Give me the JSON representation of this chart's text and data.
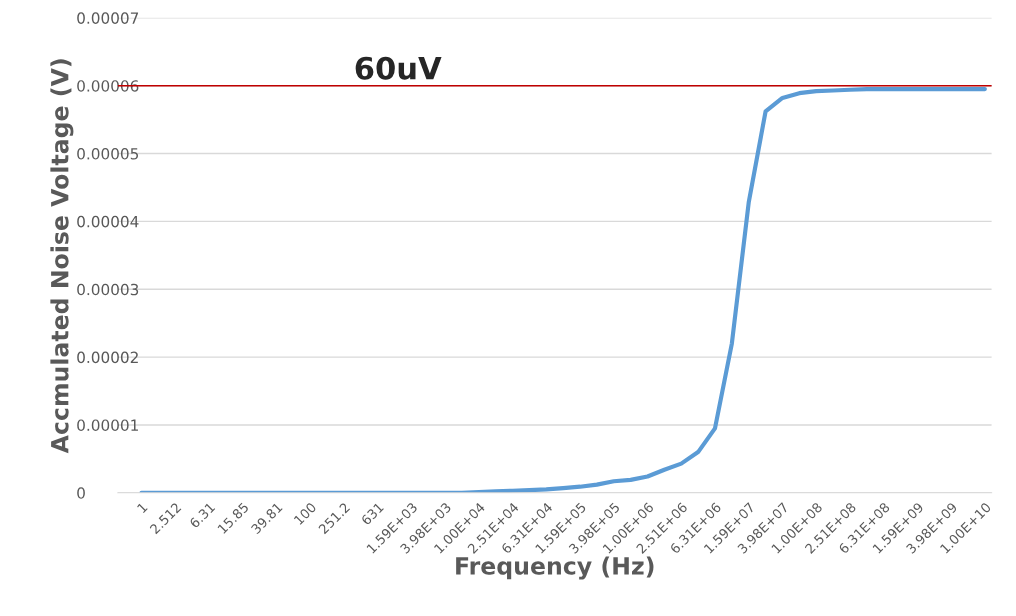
{
  "chart_data": {
    "type": "line",
    "xlabel": "Frequency (Hz)",
    "ylabel": "Accmulated Noise Voltage (V)",
    "categories": [
      "1",
      null,
      "2.512",
      null,
      "6.31",
      null,
      "15.85",
      null,
      "39.81",
      null,
      "100",
      null,
      "251.2",
      null,
      "631",
      null,
      "1.59E+03",
      null,
      "3.98E+03",
      null,
      "1.00E+04",
      null,
      "2.51E+04",
      null,
      "6.31E+04",
      null,
      "1.59E+05",
      null,
      "3.98E+05",
      null,
      "1.00E+06",
      null,
      "2.51E+06",
      null,
      "6.31E+06",
      null,
      "1.59E+07",
      null,
      "3.98E+07",
      null,
      "1.00E+08",
      null,
      "2.51E+08",
      null,
      "6.31E+08",
      null,
      "1.59E+09",
      null,
      "3.98E+09",
      null,
      "1.00E+10"
    ],
    "series": [
      {
        "color": "#5b9bd5",
        "values": [
          0,
          0,
          0,
          0,
          0,
          0,
          0,
          0,
          0,
          0,
          0,
          0,
          0,
          0,
          0,
          0,
          0,
          0,
          0,
          0,
          1e-07,
          2e-07,
          3e-07,
          4e-07,
          5e-07,
          7e-07,
          9e-07,
          1.2e-06,
          1.7e-06,
          1.9e-06,
          2.4e-06,
          3.4e-06,
          4.3e-06,
          6e-06,
          9.5e-06,
          2.2e-05,
          4.28e-05,
          5.62e-05,
          5.82e-05,
          5.89e-05,
          5.92e-05,
          5.93e-05,
          5.94e-05,
          5.95e-05,
          5.95e-05,
          5.95e-05,
          5.95e-05,
          5.95e-05,
          5.95e-05,
          5.95e-05,
          5.95e-05
        ]
      }
    ],
    "ylim": [
      0,
      7e-05
    ],
    "yticks": [
      0,
      {
        "value": 1e-05,
        "label": "0.00001"
      },
      {
        "value": 2e-05,
        "label": "0.00002"
      },
      {
        "value": 3e-05,
        "label": "0.00003"
      },
      {
        "value": 4e-05,
        "label": "0.00004"
      },
      {
        "value": 5e-05,
        "label": "0.00005"
      },
      {
        "value": 6e-05,
        "label": "0.00006"
      },
      {
        "value": 7e-05,
        "label": "0.00007"
      }
    ],
    "grid": "y",
    "marker": "none",
    "ref_lines": [
      {
        "axis": "y",
        "value": 6e-05,
        "label": "60uV",
        "color": "#c00000"
      }
    ]
  }
}
